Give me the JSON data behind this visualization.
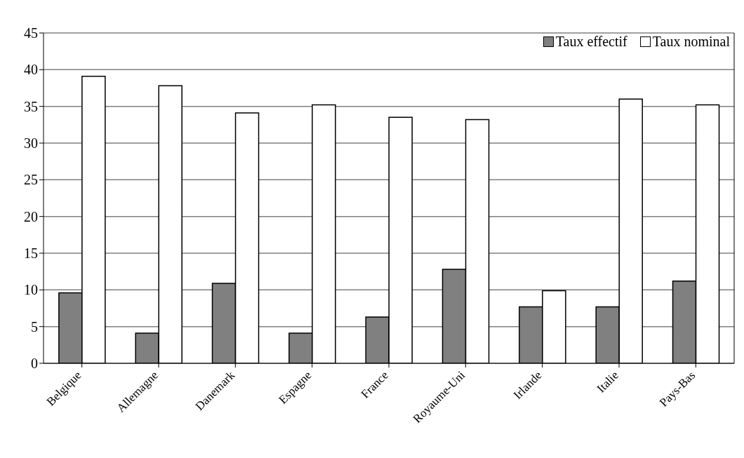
{
  "chart_data": {
    "type": "bar",
    "categories": [
      "Belgique",
      "Allemagne",
      "Danemark",
      "Espagne",
      "France",
      "Royaume-Uni",
      "Irlande",
      "Italie",
      "Pays-Bas"
    ],
    "series": [
      {
        "name": "Taux effectif",
        "color": "#808080",
        "values": [
          9.6,
          4.1,
          10.9,
          4.1,
          6.3,
          12.8,
          7.7,
          7.7,
          11.2
        ]
      },
      {
        "name": "Taux nominal",
        "color": "#ffffff",
        "values": [
          39.1,
          37.8,
          34.1,
          35.2,
          33.5,
          33.2,
          9.9,
          36.0,
          35.2
        ]
      }
    ],
    "ylim": [
      0,
      45
    ],
    "yticks": [
      0,
      5,
      10,
      15,
      20,
      25,
      30,
      35,
      40,
      45
    ],
    "grid": "y",
    "legend": "top right"
  }
}
